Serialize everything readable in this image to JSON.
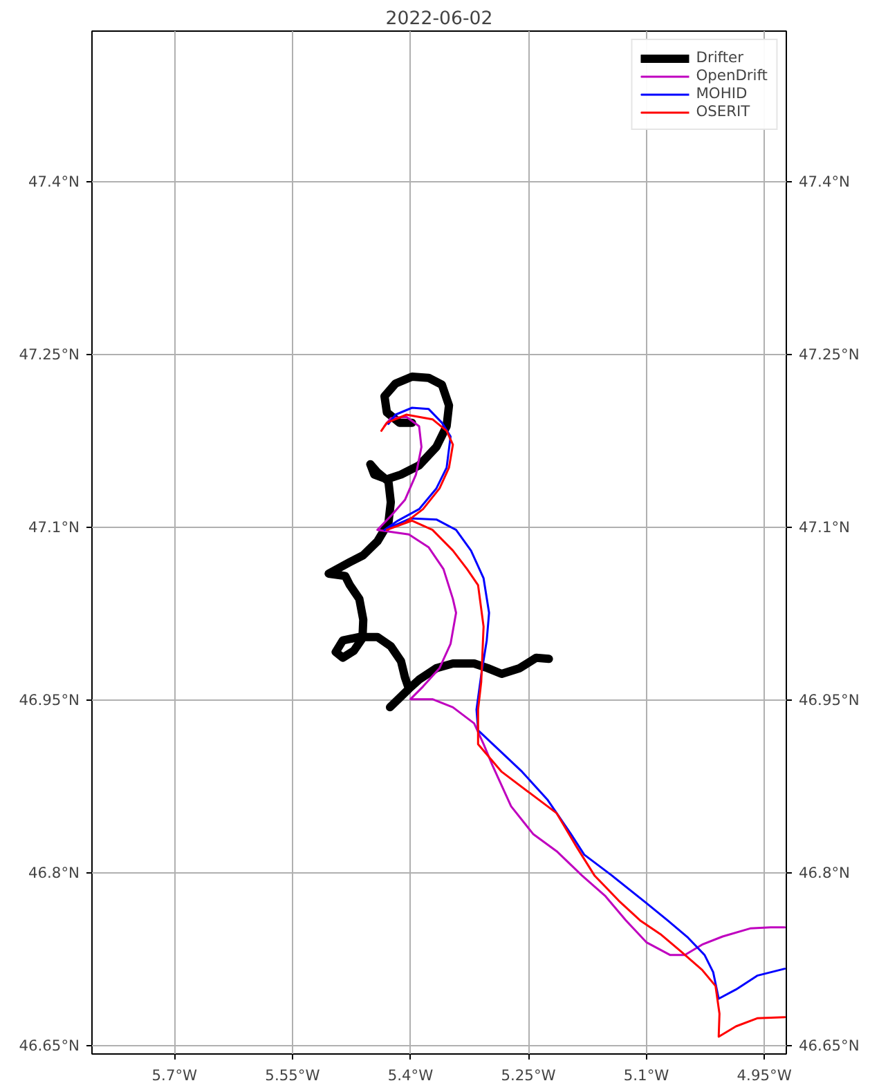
{
  "chart_data": {
    "type": "line",
    "title": "2022-06-02",
    "xlim": [
      -5.805,
      -4.922
    ],
    "ylim": [
      46.643,
      47.531
    ],
    "y2lim": [
      46.643,
      47.531
    ],
    "xticks": [
      {
        "value": -5.7,
        "label": "5.7°W"
      },
      {
        "value": -5.55,
        "label": "5.55°W"
      },
      {
        "value": -5.4,
        "label": "5.4°W"
      },
      {
        "value": -5.25,
        "label": "5.25°W"
      },
      {
        "value": -5.1,
        "label": "5.1°W"
      },
      {
        "value": -4.95,
        "label": "4.95°W"
      }
    ],
    "yticks": [
      {
        "value": 46.65,
        "label": "46.65°N"
      },
      {
        "value": 46.8,
        "label": "46.8°N"
      },
      {
        "value": 46.95,
        "label": "46.95°N"
      },
      {
        "value": 47.1,
        "label": "47.1°N"
      },
      {
        "value": 47.25,
        "label": "47.25°N"
      },
      {
        "value": 47.4,
        "label": "47.4°N"
      }
    ],
    "y2ticks": [
      {
        "value": 46.65,
        "label": "46.65°N"
      },
      {
        "value": 46.8,
        "label": "46.8°N"
      },
      {
        "value": 46.95,
        "label": "46.95°N"
      },
      {
        "value": 47.1,
        "label": "47.1°N"
      },
      {
        "value": 47.25,
        "label": "47.25°N"
      },
      {
        "value": 47.4,
        "label": "47.4°N"
      }
    ],
    "grid": true,
    "legend": "top right",
    "line_style": "solid",
    "marker": "none",
    "series": [
      {
        "name": "Drifter",
        "color": "#000000",
        "x": [
          -5.224,
          -5.24,
          -5.261,
          -5.284,
          -5.302,
          -5.319,
          -5.346,
          -5.367,
          -5.389,
          -5.402,
          -5.426,
          -5.402,
          -5.407,
          -5.412,
          -5.425,
          -5.442,
          -5.465,
          -5.486,
          -5.495,
          -5.486,
          -5.472,
          -5.461,
          -5.46,
          -5.465,
          -5.477,
          -5.483,
          -5.504,
          -5.477,
          -5.46,
          -5.442,
          -5.428,
          -5.425,
          -5.428,
          -5.442,
          -5.451,
          -5.446,
          -5.43,
          -5.412,
          -5.389,
          -5.367,
          -5.354,
          -5.351,
          -5.36,
          -5.377,
          -5.398,
          -5.419,
          -5.433,
          -5.43,
          -5.414,
          -5.398
        ],
        "values": [
          46.986,
          46.987,
          46.978,
          46.973,
          46.978,
          46.982,
          46.982,
          46.978,
          46.968,
          46.96,
          46.944,
          46.96,
          46.97,
          46.984,
          46.997,
          47.005,
          47.005,
          47.002,
          46.992,
          46.987,
          46.993,
          47.004,
          47.02,
          47.038,
          47.05,
          47.058,
          47.06,
          47.07,
          47.076,
          47.088,
          47.104,
          47.122,
          47.14,
          47.148,
          47.155,
          47.146,
          47.142,
          47.146,
          47.154,
          47.17,
          47.188,
          47.206,
          47.224,
          47.23,
          47.231,
          47.225,
          47.214,
          47.2,
          47.191,
          47.191
        ]
      },
      {
        "name": "OpenDrift",
        "color": "#bf00bf",
        "x": [
          -5.433,
          -5.425,
          -5.405,
          -5.389,
          -5.386,
          -5.393,
          -5.407,
          -5.425,
          -5.442,
          -5.402,
          -5.377,
          -5.358,
          -5.346,
          -5.342,
          -5.349,
          -5.363,
          -5.384,
          -5.4,
          -5.372,
          -5.346,
          -5.319,
          -5.307,
          -5.296,
          -5.272,
          -5.244,
          -5.214,
          -5.182,
          -5.152,
          -5.126,
          -5.1,
          -5.07,
          -5.051,
          -5.029,
          -5.003,
          -4.968,
          -4.942,
          -4.924
        ],
        "values": [
          47.188,
          47.195,
          47.196,
          47.188,
          47.17,
          47.146,
          47.124,
          47.11,
          47.098,
          47.094,
          47.083,
          47.064,
          47.038,
          47.026,
          46.999,
          46.978,
          46.962,
          46.951,
          46.951,
          46.944,
          46.93,
          46.912,
          46.894,
          46.858,
          46.834,
          46.819,
          46.798,
          46.78,
          46.759,
          46.74,
          46.729,
          46.729,
          46.738,
          46.745,
          46.752,
          46.753,
          46.753
        ]
      },
      {
        "name": "MOHID",
        "color": "#0000ff",
        "x": [
          -5.428,
          -5.419,
          -5.398,
          -5.377,
          -5.36,
          -5.349,
          -5.354,
          -5.367,
          -5.389,
          -5.416,
          -5.433,
          -5.4,
          -5.367,
          -5.342,
          -5.323,
          -5.307,
          -5.3,
          -5.303,
          -5.31,
          -5.316,
          -5.314,
          -5.289,
          -5.258,
          -5.226,
          -5.196,
          -5.179,
          -5.144,
          -5.1,
          -5.073,
          -5.047,
          -5.026,
          -5.015,
          -5.008,
          -4.986,
          -4.959,
          -4.924
        ],
        "values": [
          47.19,
          47.198,
          47.204,
          47.203,
          47.191,
          47.179,
          47.152,
          47.134,
          47.116,
          47.106,
          47.098,
          47.108,
          47.107,
          47.098,
          47.08,
          47.056,
          47.026,
          47.002,
          46.972,
          46.942,
          46.924,
          46.908,
          46.888,
          46.864,
          46.834,
          46.816,
          46.798,
          46.774,
          46.759,
          46.744,
          46.729,
          46.714,
          46.691,
          46.699,
          46.711,
          46.717
        ]
      },
      {
        "name": "OSERIT",
        "color": "#ff0000",
        "x": [
          -5.437,
          -5.43,
          -5.405,
          -5.372,
          -5.354,
          -5.346,
          -5.351,
          -5.363,
          -5.384,
          -5.407,
          -5.43,
          -5.398,
          -5.372,
          -5.346,
          -5.328,
          -5.314,
          -5.307,
          -5.31,
          -5.314,
          -5.314,
          -5.284,
          -5.249,
          -5.214,
          -5.188,
          -5.166,
          -5.135,
          -5.108,
          -5.082,
          -5.056,
          -5.029,
          -5.012,
          -5.007,
          -5.008,
          -4.986,
          -4.959,
          -4.924
        ],
        "values": [
          47.184,
          47.191,
          47.198,
          47.194,
          47.184,
          47.172,
          47.152,
          47.134,
          47.116,
          47.104,
          47.098,
          47.106,
          47.098,
          47.08,
          47.064,
          47.05,
          47.014,
          46.966,
          46.942,
          46.912,
          46.888,
          46.87,
          46.852,
          46.822,
          46.798,
          46.776,
          46.759,
          46.747,
          46.732,
          46.716,
          46.702,
          46.678,
          46.658,
          46.667,
          46.674,
          46.675
        ]
      }
    ]
  }
}
